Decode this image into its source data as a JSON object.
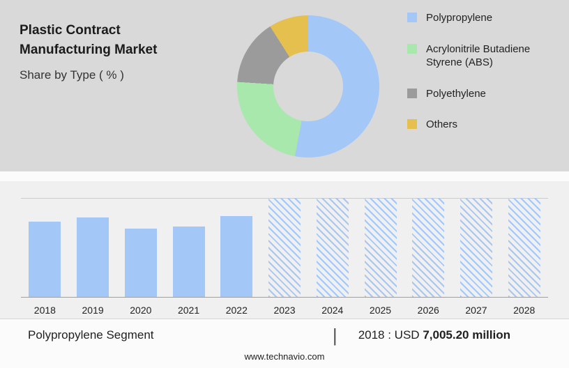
{
  "header": {
    "title": "Plastic Contract Manufacturing Market",
    "subtitle": "Share by Type ( % )"
  },
  "chart_data": [
    {
      "type": "pie",
      "donut": true,
      "title": "Share by Type ( % )",
      "labels": [
        "Polypropylene",
        "Acrylonitrile Butadiene Styrene (ABS)",
        "Polyethylene",
        "Others"
      ],
      "values": [
        53,
        23,
        15,
        9
      ],
      "colors": [
        "#a3c7f7",
        "#a9e8ad",
        "#9b9b9b",
        "#e6c04e"
      ],
      "legend_position": "right"
    },
    {
      "type": "bar",
      "categories": [
        "2018",
        "2019",
        "2020",
        "2021",
        "2022",
        "2023",
        "2024",
        "2025",
        "2026",
        "2027",
        "2028"
      ],
      "values_pct_of_plot_height": [
        76,
        80,
        69,
        71,
        82,
        100,
        100,
        100,
        100,
        100,
        100
      ],
      "forecast_start_index": 5,
      "bar_color": "#a3c7f7",
      "labeled_point": {
        "year": "2018",
        "value": "USD 7,005.20 million"
      },
      "xlabel": "",
      "ylabel": ""
    }
  ],
  "caption": {
    "segment": "Polypropylene Segment",
    "separator": "|",
    "year_prefix": "2018 : USD",
    "value": "7,005.20 million"
  },
  "footer": {
    "website": "www.technavio.com"
  }
}
